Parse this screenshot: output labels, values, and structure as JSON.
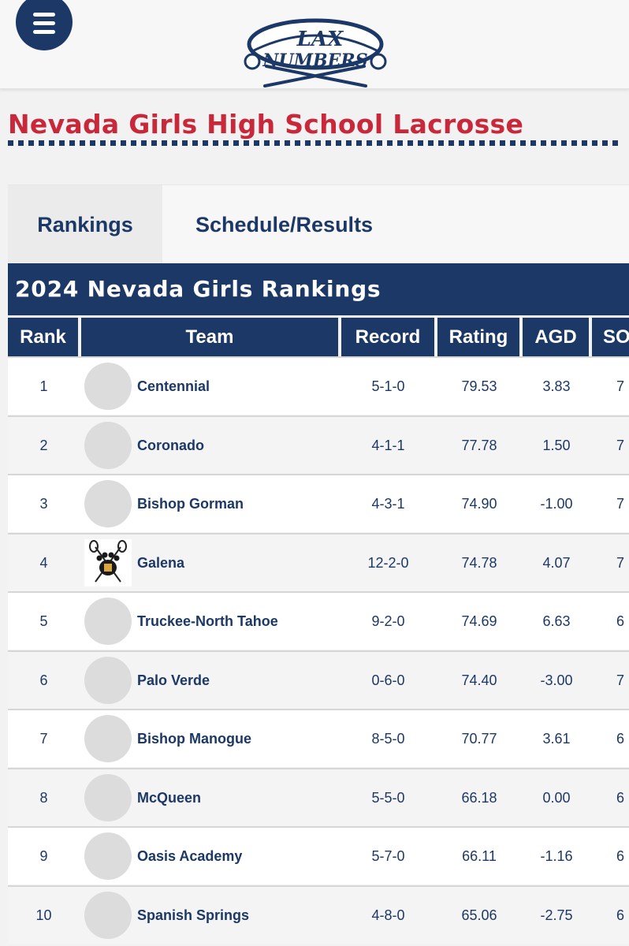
{
  "header": {
    "menu_icon": "hamburger-menu-icon",
    "logo": {
      "line1": "LAX",
      "line2": "NUMBERS"
    }
  },
  "page_title": "Nevada Girls High School Lacrosse",
  "tabs": [
    {
      "label": "Rankings",
      "active": true
    },
    {
      "label": "Schedule/Results",
      "active": false
    }
  ],
  "rankings": {
    "title": "2024 Nevada Girls Rankings",
    "columns": [
      "Rank",
      "Team",
      "Record",
      "Rating",
      "AGD",
      "SOS"
    ],
    "rows": [
      {
        "rank": "1",
        "team": "Centennial",
        "record": "5-1-0",
        "rating": "79.53",
        "agd": "3.83",
        "sos": "7",
        "logo": "placeholder-avatar"
      },
      {
        "rank": "2",
        "team": "Coronado",
        "record": "4-1-1",
        "rating": "77.78",
        "agd": "1.50",
        "sos": "7",
        "logo": "placeholder-avatar"
      },
      {
        "rank": "3",
        "team": "Bishop Gorman",
        "record": "4-3-1",
        "rating": "74.90",
        "agd": "-1.00",
        "sos": "7",
        "logo": "placeholder-avatar"
      },
      {
        "rank": "4",
        "team": "Galena",
        "record": "12-2-0",
        "rating": "74.78",
        "agd": "4.07",
        "sos": "7",
        "logo": "bear-paw-lacrosse-logo"
      },
      {
        "rank": "5",
        "team": "Truckee-North Tahoe",
        "record": "9-2-0",
        "rating": "74.69",
        "agd": "6.63",
        "sos": "6",
        "logo": "placeholder-avatar"
      },
      {
        "rank": "6",
        "team": "Palo Verde",
        "record": "0-6-0",
        "rating": "74.40",
        "agd": "-3.00",
        "sos": "7",
        "logo": "placeholder-avatar"
      },
      {
        "rank": "7",
        "team": "Bishop Manogue",
        "record": "8-5-0",
        "rating": "70.77",
        "agd": "3.61",
        "sos": "6",
        "logo": "placeholder-avatar"
      },
      {
        "rank": "8",
        "team": "McQueen",
        "record": "5-5-0",
        "rating": "66.18",
        "agd": "0.00",
        "sos": "6",
        "logo": "placeholder-avatar"
      },
      {
        "rank": "9",
        "team": "Oasis Academy",
        "record": "5-7-0",
        "rating": "66.11",
        "agd": "-1.16",
        "sos": "6",
        "logo": "placeholder-avatar"
      },
      {
        "rank": "10",
        "team": "Spanish Springs",
        "record": "4-8-0",
        "rating": "65.06",
        "agd": "-2.75",
        "sos": "6",
        "logo": "placeholder-avatar"
      }
    ]
  },
  "colors": {
    "navy": "#1c3866",
    "red": "#c8283a",
    "row_alt": "#f4f4f4"
  }
}
